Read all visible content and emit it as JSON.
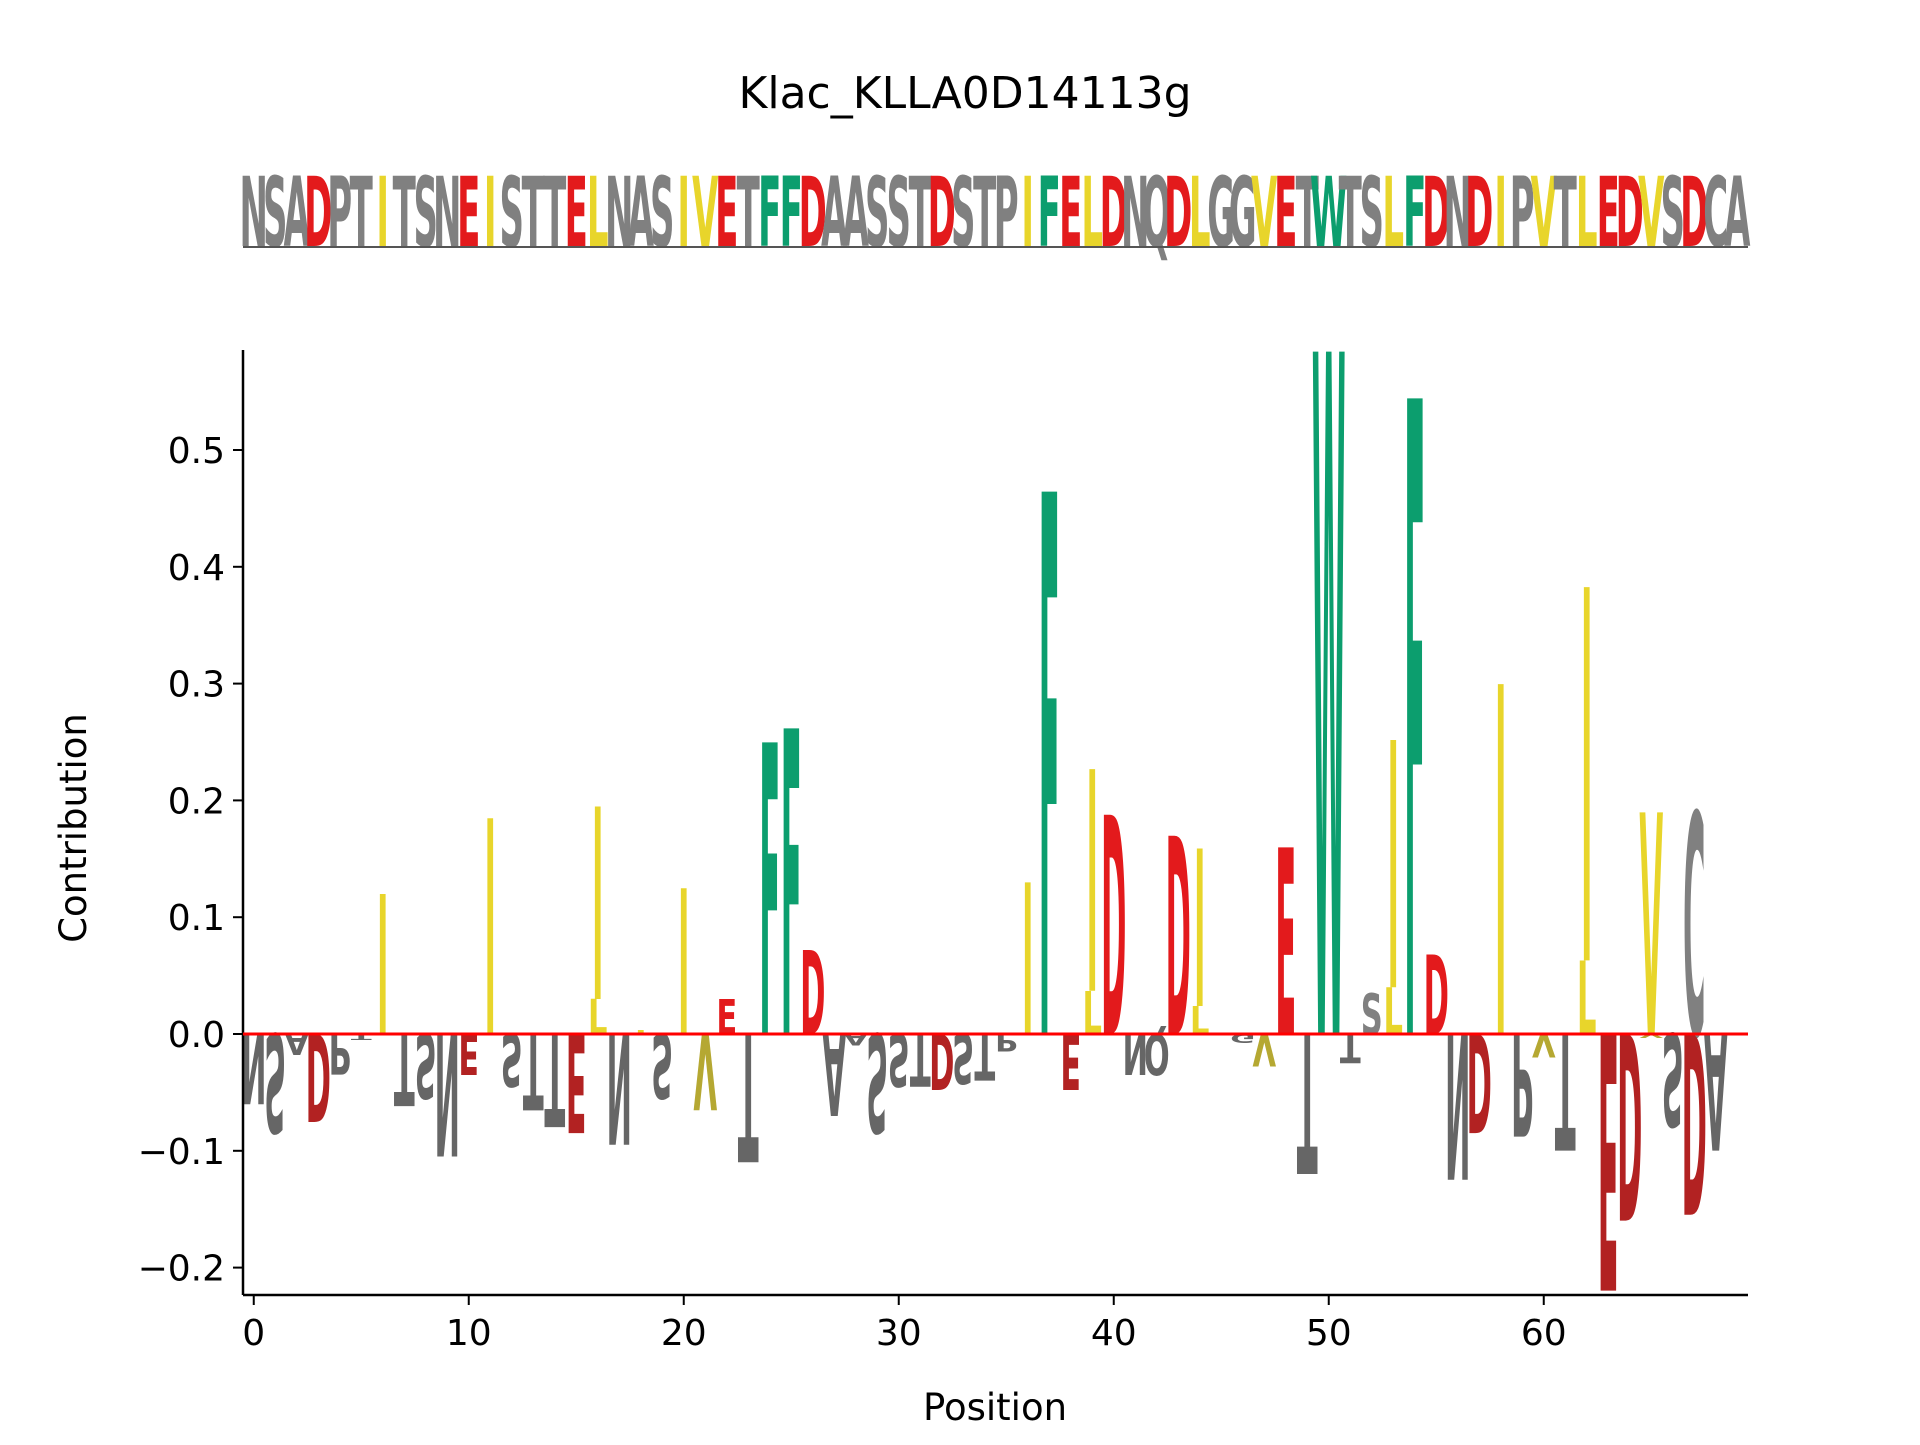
{
  "chart_data": {
    "type": "logo",
    "title": "Klac_KLLA0D14113g",
    "xlabel": "Position",
    "ylabel": "Contribution",
    "xlim": [
      -0.5,
      69.5
    ],
    "ylim": [
      -0.22,
      0.585
    ],
    "xticks": [
      0,
      10,
      20,
      30,
      40,
      50,
      60
    ],
    "yticks": [
      {
        "value": 0.5,
        "label": "0.5"
      },
      {
        "value": 0.4,
        "label": "0.4"
      },
      {
        "value": 0.3,
        "label": "0.3"
      },
      {
        "value": 0.2,
        "label": "0.2"
      },
      {
        "value": 0.1,
        "label": "0.1"
      },
      {
        "value": 0.0,
        "label": "0.0"
      },
      {
        "value": -0.1,
        "label": "−0.1"
      },
      {
        "value": -0.2,
        "label": "−0.2"
      }
    ],
    "sequence": "NSADPTITSNEISTTELNASIVETFFDAASSTDSTPIFELDNQDLGGVETWTSLFDNDIPVTLEDVSDCA",
    "colors": {
      "acidic": "#e31a1c",
      "acidic_dark": "#b22222",
      "hydrophobic": "#e8d52b",
      "hydrophobic_dark": "#b5a832",
      "aromatic": "#0c9e6e",
      "neutral": "#808080",
      "neutral_dark": "#666666",
      "baseline": "#ff0000"
    },
    "positive": [
      {
        "pos": 6,
        "letter": "I",
        "value": 0.12
      },
      {
        "pos": 11,
        "letter": "I",
        "value": 0.185
      },
      {
        "pos": 16,
        "letter": "L",
        "value": 0.03
      },
      {
        "pos": 16,
        "letter": "I",
        "value": 0.165
      },
      {
        "pos": 18,
        "letter": "I",
        "value": 0.003
      },
      {
        "pos": 20,
        "letter": "I",
        "value": 0.125
      },
      {
        "pos": 22,
        "letter": "E",
        "value": 0.03
      },
      {
        "pos": 24,
        "letter": "F",
        "value": 0.25
      },
      {
        "pos": 25,
        "letter": "F",
        "value": 0.262
      },
      {
        "pos": 26,
        "letter": "D",
        "value": 0.072
      },
      {
        "pos": 36,
        "letter": "I",
        "value": 0.13
      },
      {
        "pos": 37,
        "letter": "F",
        "value": 0.465
      },
      {
        "pos": 39,
        "letter": "L",
        "value": 0.037
      },
      {
        "pos": 39,
        "letter": "I",
        "value": 0.19
      },
      {
        "pos": 40,
        "letter": "D",
        "value": 0.188
      },
      {
        "pos": 43,
        "letter": "D",
        "value": 0.17
      },
      {
        "pos": 44,
        "letter": "L",
        "value": 0.024
      },
      {
        "pos": 44,
        "letter": "I",
        "value": 0.135
      },
      {
        "pos": 48,
        "letter": "E",
        "value": 0.16
      },
      {
        "pos": 50,
        "letter": "W",
        "value": 0.585
      },
      {
        "pos": 52,
        "letter": "S",
        "value": 0.035
      },
      {
        "pos": 53,
        "letter": "L",
        "value": 0.04
      },
      {
        "pos": 53,
        "letter": "I",
        "value": 0.212
      },
      {
        "pos": 54,
        "letter": "F",
        "value": 0.545
      },
      {
        "pos": 55,
        "letter": "D",
        "value": 0.068
      },
      {
        "pos": 58,
        "letter": "I",
        "value": 0.3
      },
      {
        "pos": 62,
        "letter": "L",
        "value": 0.063
      },
      {
        "pos": 62,
        "letter": "I",
        "value": 0.32
      },
      {
        "pos": 65,
        "letter": "V",
        "value": 0.19
      },
      {
        "pos": 67,
        "letter": "C",
        "value": 0.19
      }
    ],
    "negative": [
      {
        "pos": 0,
        "letter": "N",
        "value": -0.06
      },
      {
        "pos": 1,
        "letter": "S",
        "value": -0.085
      },
      {
        "pos": 2,
        "letter": "A",
        "value": -0.018
      },
      {
        "pos": 3,
        "letter": "D",
        "value": -0.075
      },
      {
        "pos": 4,
        "letter": "P",
        "value": -0.035
      },
      {
        "pos": 5,
        "letter": "T",
        "value": -0.005
      },
      {
        "pos": 7,
        "letter": "T",
        "value": -0.062
      },
      {
        "pos": 8,
        "letter": "S",
        "value": -0.055
      },
      {
        "pos": 9,
        "letter": "N",
        "value": -0.105
      },
      {
        "pos": 10,
        "letter": "E",
        "value": -0.035
      },
      {
        "pos": 12,
        "letter": "S",
        "value": -0.045
      },
      {
        "pos": 13,
        "letter": "T",
        "value": -0.065
      },
      {
        "pos": 14,
        "letter": "T",
        "value": -0.08
      },
      {
        "pos": 15,
        "letter": "E",
        "value": -0.085
      },
      {
        "pos": 17,
        "letter": "N",
        "value": -0.095
      },
      {
        "pos": 19,
        "letter": "S",
        "value": -0.055
      },
      {
        "pos": 21,
        "letter": "V",
        "value": -0.065
      },
      {
        "pos": 23,
        "letter": "T",
        "value": -0.11
      },
      {
        "pos": 27,
        "letter": "A",
        "value": -0.07
      },
      {
        "pos": 28,
        "letter": "A",
        "value": -0.01
      },
      {
        "pos": 29,
        "letter": "S",
        "value": -0.085
      },
      {
        "pos": 30,
        "letter": "S",
        "value": -0.045
      },
      {
        "pos": 31,
        "letter": "T",
        "value": -0.045
      },
      {
        "pos": 32,
        "letter": "D",
        "value": -0.048
      },
      {
        "pos": 33,
        "letter": "S",
        "value": -0.043
      },
      {
        "pos": 34,
        "letter": "T",
        "value": -0.04
      },
      {
        "pos": 35,
        "letter": "P",
        "value": -0.015
      },
      {
        "pos": 38,
        "letter": "E",
        "value": -0.048
      },
      {
        "pos": 41,
        "letter": "N",
        "value": -0.035
      },
      {
        "pos": 42,
        "letter": "Q",
        "value": -0.035
      },
      {
        "pos": 46,
        "letter": "G",
        "value": -0.008
      },
      {
        "pos": 47,
        "letter": "V",
        "value": -0.028
      },
      {
        "pos": 49,
        "letter": "T",
        "value": -0.12
      },
      {
        "pos": 51,
        "letter": "T",
        "value": -0.025
      },
      {
        "pos": 56,
        "letter": "N",
        "value": -0.125
      },
      {
        "pos": 57,
        "letter": "D",
        "value": -0.085
      },
      {
        "pos": 59,
        "letter": "P",
        "value": -0.088
      },
      {
        "pos": 60,
        "letter": "V",
        "value": -0.02
      },
      {
        "pos": 61,
        "letter": "T",
        "value": -0.1
      },
      {
        "pos": 63,
        "letter": "E",
        "value": -0.22
      },
      {
        "pos": 64,
        "letter": "D",
        "value": -0.16
      },
      {
        "pos": 65,
        "letter": "V",
        "value": -0.003
      },
      {
        "pos": 66,
        "letter": "S",
        "value": -0.08
      },
      {
        "pos": 67,
        "letter": "D",
        "value": -0.155
      },
      {
        "pos": 68,
        "letter": "A",
        "value": -0.1
      }
    ]
  }
}
